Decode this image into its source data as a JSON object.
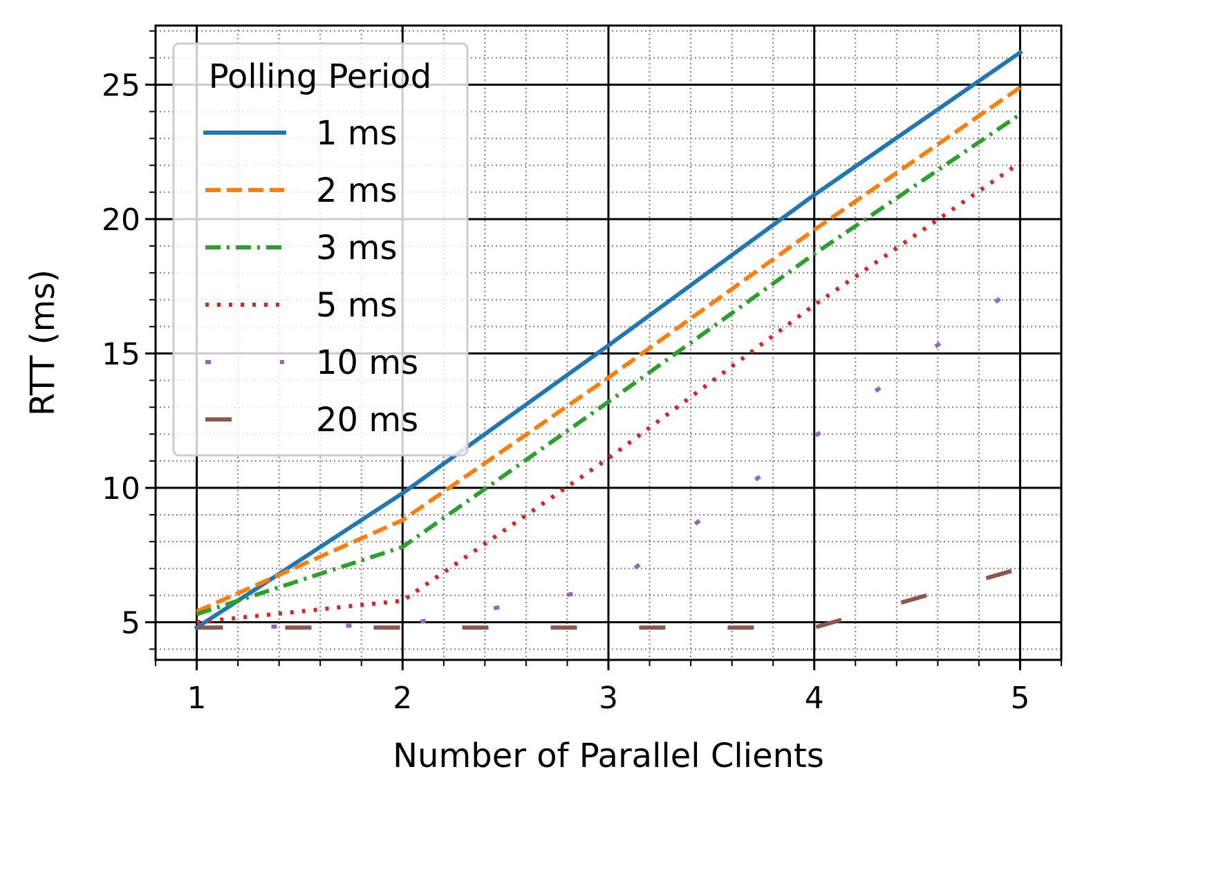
{
  "chart_data": {
    "type": "line",
    "xlabel": "Number of Parallel Clients",
    "ylabel": "RTT (ms)",
    "xlim": [
      0.8,
      5.2
    ],
    "ylim": [
      3.6,
      27.2
    ],
    "x_ticks": [
      1,
      2,
      3,
      4,
      5
    ],
    "y_ticks": [
      5,
      10,
      15,
      20,
      25
    ],
    "x_minor_step": 0.2,
    "y_minor_step": 1,
    "grid": "major and minor",
    "legend": {
      "title": "Polling Period",
      "placement": "top-left"
    },
    "x": [
      1,
      2,
      3,
      4,
      5
    ],
    "series": [
      {
        "name": "1 ms",
        "color": "#1f77b4",
        "style": "solid",
        "values": [
          4.8,
          9.8,
          15.3,
          20.9,
          26.2
        ]
      },
      {
        "name": "2 ms",
        "color": "#ff7f0e",
        "style": "dashed",
        "values": [
          5.4,
          8.8,
          14.1,
          19.6,
          24.9
        ]
      },
      {
        "name": "3 ms",
        "color": "#2ca02c",
        "style": "dashdot",
        "values": [
          5.3,
          7.8,
          13.2,
          18.7,
          23.9
        ]
      },
      {
        "name": "5 ms",
        "color": "#d62728",
        "style": "dotted",
        "values": [
          5.0,
          5.8,
          11.1,
          16.8,
          22.1
        ]
      },
      {
        "name": "10 ms",
        "color": "#9467bd",
        "style": "sparse",
        "values": [
          4.8,
          4.9,
          6.3,
          11.9,
          17.6
        ]
      },
      {
        "name": "20 ms",
        "color": "#8c564b",
        "style": "longdash",
        "values": [
          4.8,
          4.8,
          4.8,
          4.8,
          7.0
        ]
      }
    ]
  }
}
